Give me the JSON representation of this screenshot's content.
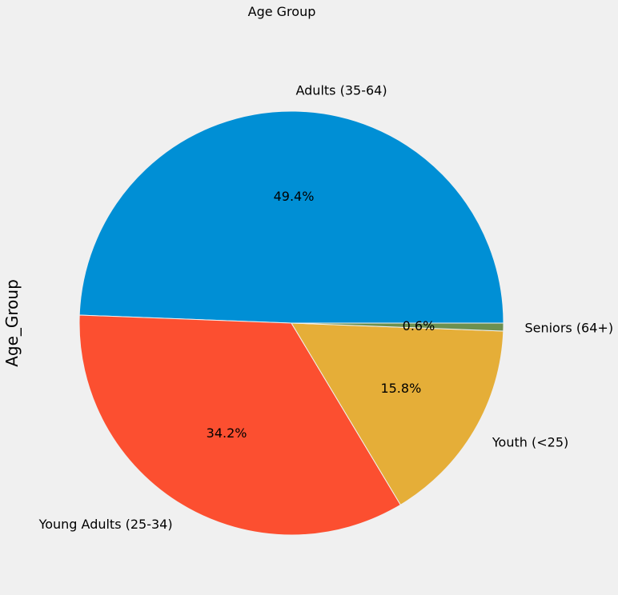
{
  "chart_data": {
    "type": "pie",
    "title": "Age Group",
    "ylabel": "Age_Group",
    "start_angle_deg": 0,
    "direction": "counterclockwise",
    "slices": [
      {
        "label": "Adults (35-64)",
        "value": 49.4,
        "pct_label": "49.4%",
        "color": "#008fd5"
      },
      {
        "label": "Young Adults (25-34)",
        "value": 34.2,
        "pct_label": "34.2%",
        "color": "#fc4f30"
      },
      {
        "label": "Youth (<25)",
        "value": 15.8,
        "pct_label": "15.8%",
        "color": "#e5ae38"
      },
      {
        "label": "Seniors (64+)",
        "value": 0.6,
        "pct_label": "0.6%",
        "color": "#6d904f"
      }
    ]
  }
}
